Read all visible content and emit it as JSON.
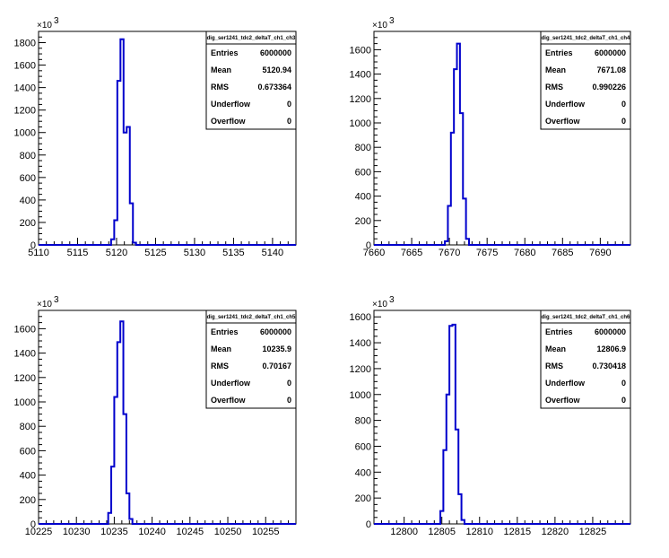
{
  "exponent_label": "×10",
  "exponent_power": "3",
  "chart_data": [
    {
      "type": "bar",
      "histogram_name": "dig_ser1241_tdc2_deltaT_ch1_ch3",
      "xlim": [
        5110,
        5143
      ],
      "ylim": [
        0,
        1900
      ],
      "xticks": [
        5110,
        5115,
        5120,
        5125,
        5130,
        5135,
        5140
      ],
      "yticks": [
        0,
        200,
        400,
        600,
        800,
        1000,
        1200,
        1400,
        1600,
        1800
      ],
      "bins": [
        {
          "x0": 5119.3,
          "x1": 5119.7,
          "count": 50
        },
        {
          "x0": 5119.7,
          "x1": 5120.1,
          "count": 220
        },
        {
          "x0": 5120.1,
          "x1": 5120.5,
          "count": 1460
        },
        {
          "x0": 5120.5,
          "x1": 5120.9,
          "count": 1830
        },
        {
          "x0": 5120.9,
          "x1": 5121.3,
          "count": 1000
        },
        {
          "x0": 5121.3,
          "x1": 5121.7,
          "count": 1050
        },
        {
          "x0": 5121.7,
          "x1": 5122.1,
          "count": 370
        },
        {
          "x0": 5122.1,
          "x1": 5122.5,
          "count": 20
        }
      ],
      "stats": [
        {
          "label": "Entries",
          "value": "6000000"
        },
        {
          "label": "Mean",
          "value": "5120.94"
        },
        {
          "label": "RMS",
          "value": "0.673364"
        },
        {
          "label": "Underflow",
          "value": "0"
        },
        {
          "label": "Overflow",
          "value": "0"
        }
      ]
    },
    {
      "type": "bar",
      "histogram_name": "dig_ser1241_tdc2_deltaT_ch1_ch4",
      "xlim": [
        7660,
        7694
      ],
      "ylim": [
        0,
        1750
      ],
      "xticks": [
        7660,
        7665,
        7670,
        7675,
        7680,
        7685,
        7690
      ],
      "yticks": [
        0,
        200,
        400,
        600,
        800,
        1000,
        1200,
        1400,
        1600
      ],
      "bins": [
        {
          "x0": 7669.4,
          "x1": 7669.8,
          "count": 30
        },
        {
          "x0": 7669.8,
          "x1": 7670.2,
          "count": 320
        },
        {
          "x0": 7670.2,
          "x1": 7670.6,
          "count": 920
        },
        {
          "x0": 7670.6,
          "x1": 7671.0,
          "count": 1440
        },
        {
          "x0": 7671.0,
          "x1": 7671.4,
          "count": 1650
        },
        {
          "x0": 7671.4,
          "x1": 7671.8,
          "count": 1080
        },
        {
          "x0": 7671.8,
          "x1": 7672.2,
          "count": 380
        },
        {
          "x0": 7672.2,
          "x1": 7672.6,
          "count": 50
        }
      ],
      "stats": [
        {
          "label": "Entries",
          "value": "6000000"
        },
        {
          "label": "Mean",
          "value": "7671.08"
        },
        {
          "label": "RMS",
          "value": "0.990226"
        },
        {
          "label": "Underflow",
          "value": "0"
        },
        {
          "label": "Overflow",
          "value": "0"
        }
      ]
    },
    {
      "type": "bar",
      "histogram_name": "dig_ser1241_tdc2_deltaT_ch1_ch5",
      "xlim": [
        10225,
        10259
      ],
      "ylim": [
        0,
        1750
      ],
      "xticks": [
        10225,
        10230,
        10235,
        10240,
        10245,
        10250,
        10255
      ],
      "yticks": [
        0,
        200,
        400,
        600,
        800,
        1000,
        1200,
        1400,
        1600
      ],
      "bins": [
        {
          "x0": 10234.2,
          "x1": 10234.6,
          "count": 90
        },
        {
          "x0": 10234.6,
          "x1": 10235.0,
          "count": 470
        },
        {
          "x0": 10235.0,
          "x1": 10235.4,
          "count": 1040
        },
        {
          "x0": 10235.4,
          "x1": 10235.8,
          "count": 1490
        },
        {
          "x0": 10235.8,
          "x1": 10236.2,
          "count": 1660
        },
        {
          "x0": 10236.2,
          "x1": 10236.6,
          "count": 900
        },
        {
          "x0": 10236.6,
          "x1": 10237.0,
          "count": 250
        },
        {
          "x0": 10237.0,
          "x1": 10237.4,
          "count": 40
        }
      ],
      "stats": [
        {
          "label": "Entries",
          "value": "6000000"
        },
        {
          "label": "Mean",
          "value": "10235.9"
        },
        {
          "label": "RMS",
          "value": "0.70167"
        },
        {
          "label": "Underflow",
          "value": "0"
        },
        {
          "label": "Overflow",
          "value": "0"
        }
      ]
    },
    {
      "type": "bar",
      "histogram_name": "dig_ser1241_tdc2_deltaT_ch1_ch6",
      "xlim": [
        12796,
        12830
      ],
      "ylim": [
        0,
        1650
      ],
      "xticks": [
        12800,
        12805,
        12810,
        12815,
        12820,
        12825
      ],
      "yticks": [
        0,
        200,
        400,
        600,
        800,
        1000,
        1200,
        1400,
        1600
      ],
      "bins": [
        {
          "x0": 12804.8,
          "x1": 12805.2,
          "count": 100
        },
        {
          "x0": 12805.2,
          "x1": 12805.6,
          "count": 570
        },
        {
          "x0": 12805.6,
          "x1": 12806.0,
          "count": 1000
        },
        {
          "x0": 12806.0,
          "x1": 12806.4,
          "count": 1530
        },
        {
          "x0": 12806.4,
          "x1": 12806.8,
          "count": 1540
        },
        {
          "x0": 12806.8,
          "x1": 12807.2,
          "count": 730
        },
        {
          "x0": 12807.2,
          "x1": 12807.6,
          "count": 230
        },
        {
          "x0": 12807.6,
          "x1": 12808.0,
          "count": 30
        }
      ],
      "stats": [
        {
          "label": "Entries",
          "value": "6000000"
        },
        {
          "label": "Mean",
          "value": "12806.9"
        },
        {
          "label": "RMS",
          "value": "0.730418"
        },
        {
          "label": "Underflow",
          "value": "0"
        },
        {
          "label": "Overflow",
          "value": "0"
        }
      ]
    }
  ]
}
